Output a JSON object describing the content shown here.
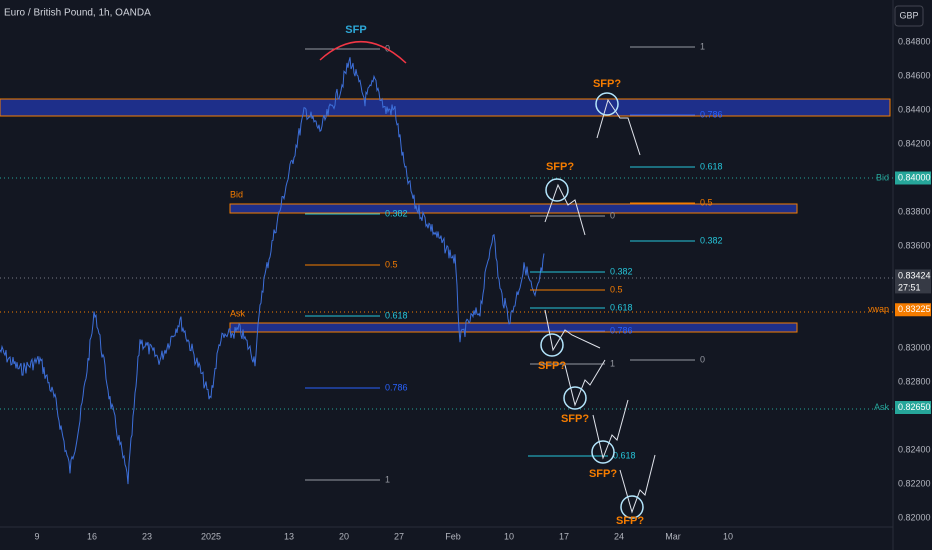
{
  "header": {
    "symbol": "Euro / British Pound, 1h, OANDA",
    "currency": "GBP"
  },
  "price_axis": [
    "0.84800",
    "0.84600",
    "0.84400",
    "0.84200",
    "0.84000",
    "0.83800",
    "0.83600",
    "0.83424",
    "0.83225",
    "0.83000",
    "0.82800",
    "0.82650",
    "0.82400",
    "0.82200",
    "0.82000"
  ],
  "price_tags": {
    "bid": {
      "name": "Bid",
      "price": "0.84000"
    },
    "last": {
      "price": "0.83424",
      "countdown": "27:51"
    },
    "vwap": {
      "name": "vwap",
      "price": "0.83225"
    },
    "ask": {
      "name": "Ask",
      "price": "0.82650"
    }
  },
  "time_axis": [
    "9",
    "16",
    "23",
    "2025",
    "13",
    "20",
    "27",
    "Feb",
    "10",
    "17",
    "24",
    "Mar",
    "10"
  ],
  "zones": {
    "bid": "Bid",
    "ask": "Ask"
  },
  "annotations": {
    "sfp": "SFP",
    "sfp_q": [
      "SFP?",
      "SFP?",
      "SFP?",
      "SFP?",
      "SFP?",
      "SFP?"
    ]
  },
  "fib_left": [
    "0",
    "0.382",
    "0.5",
    "0.618",
    "0.786",
    "1"
  ],
  "fib_right": [
    "1",
    "0.786",
    "0.618",
    "0.5",
    "0.382",
    "0"
  ],
  "fib_mid": [
    "0",
    "0.382",
    "0.5",
    "0.618",
    "0.786",
    "1"
  ],
  "fib_low": [
    "0.618"
  ]
}
